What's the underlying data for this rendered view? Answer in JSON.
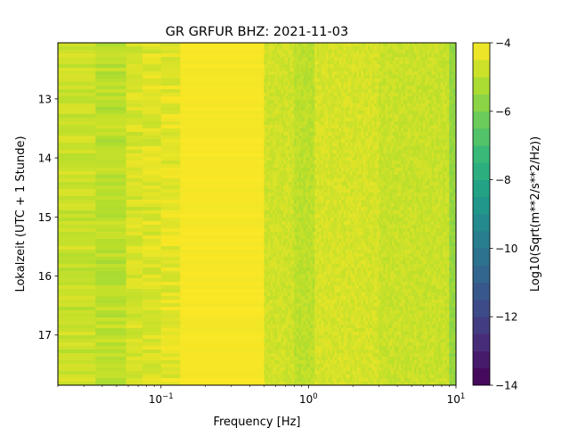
{
  "chart_data": {
    "type": "heatmap",
    "title": "GR GRFUR  BHZ: 2021-11-03",
    "xlabel": "Frequency [Hz]",
    "ylabel": "Lokalzeit (UTC + 1 Stunde)",
    "x_scale": "log",
    "xlim": [
      0.02,
      10
    ],
    "x_ticks": [
      {
        "value": 0.1,
        "base": "10",
        "exp": "−1"
      },
      {
        "value": 1,
        "base": "10",
        "exp": "0"
      },
      {
        "value": 10,
        "base": "10",
        "exp": "1"
      }
    ],
    "ylim": [
      17.85,
      12.05
    ],
    "y_ticks": [
      {
        "value": 13,
        "label": "13"
      },
      {
        "value": 14,
        "label": "14"
      },
      {
        "value": 15,
        "label": "15"
      },
      {
        "value": 16,
        "label": "16"
      },
      {
        "value": 17,
        "label": "17"
      }
    ],
    "colorbar": {
      "label": "Log10(Sqrt(m**2/s**2/Hz))",
      "range": [
        -14,
        -4
      ],
      "colormap": "viridis",
      "ticks": [
        {
          "value": -4,
          "label": "−4"
        },
        {
          "value": -6,
          "label": "−6"
        },
        {
          "value": -8,
          "label": "−8"
        },
        {
          "value": -10,
          "label": "−10"
        },
        {
          "value": -12,
          "label": "−12"
        },
        {
          "value": -14,
          "label": "−14"
        }
      ]
    },
    "frequency_bands": [
      {
        "f_min": 0.02,
        "f_max": 0.036,
        "value": -4.8
      },
      {
        "f_min": 0.036,
        "f_max": 0.058,
        "value": -5.0
      },
      {
        "f_min": 0.058,
        "f_max": 0.075,
        "value": -4.6
      },
      {
        "f_min": 0.075,
        "f_max": 0.1,
        "value": -4.5
      },
      {
        "f_min": 0.1,
        "f_max": 0.135,
        "value": -4.4
      },
      {
        "f_min": 0.135,
        "f_max": 0.5,
        "value": -4.1
      },
      {
        "f_min": 0.5,
        "f_max": 0.8,
        "value": -4.7
      },
      {
        "f_min": 0.8,
        "f_max": 1.1,
        "value": -5.0
      },
      {
        "f_min": 1.1,
        "f_max": 3.0,
        "value": -4.6
      },
      {
        "f_min": 3.0,
        "f_max": 9.0,
        "value": -4.8
      },
      {
        "f_min": 9.0,
        "f_max": 10,
        "value": -5.6
      }
    ]
  }
}
